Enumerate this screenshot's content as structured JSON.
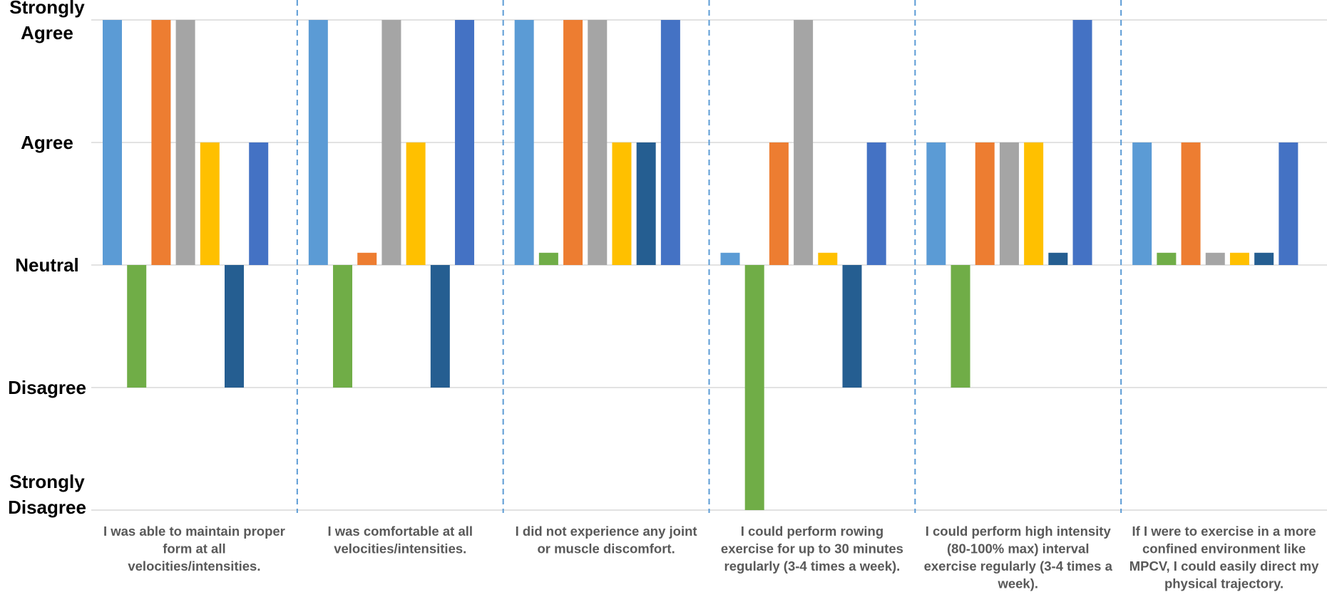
{
  "chart_data": {
    "type": "bar",
    "title": "",
    "xlabel": "",
    "ylabel": "",
    "ylim": [
      -2,
      2
    ],
    "grid": true,
    "legend": "none",
    "y_ticks": [
      {
        "value": 2,
        "lines": [
          "Strongly",
          "Agree"
        ]
      },
      {
        "value": 1,
        "lines": [
          "Agree"
        ]
      },
      {
        "value": 0,
        "lines": [
          "Neutral"
        ]
      },
      {
        "value": -1,
        "lines": [
          "Disagree"
        ]
      },
      {
        "value": -2,
        "lines": [
          "Strongly",
          "Disagree"
        ]
      }
    ],
    "categories": [
      [
        "I was able to maintain proper",
        "form at all",
        "velocities/intensities."
      ],
      [
        "I was comfortable at all",
        "velocities/intensities."
      ],
      [
        "I did not experience any joint",
        "or muscle discomfort."
      ],
      [
        "I could perform rowing",
        "exercise for up to 30 minutes",
        "regularly (3-4 times a week)."
      ],
      [
        "I could perform high intensity",
        "(80-100% max) interval",
        "exercise regularly (3-4 times a",
        "week)."
      ],
      [
        "If I were to exercise in a more",
        "confined environment like",
        "MPCV, I could easily direct my",
        "physical trajectory."
      ]
    ],
    "series": [
      {
        "color": "#5B9BD5",
        "values": [
          2,
          2,
          2,
          0.1,
          1,
          1
        ]
      },
      {
        "color": "#70AD47",
        "values": [
          -1,
          -1,
          0.1,
          -2,
          -1,
          0.1
        ]
      },
      {
        "color": "#ED7D31",
        "values": [
          2,
          0.1,
          2,
          1,
          1,
          1
        ]
      },
      {
        "color": "#A5A5A5",
        "values": [
          2,
          2,
          2,
          2,
          1,
          0.1
        ]
      },
      {
        "color": "#FFC000",
        "values": [
          1,
          1,
          1,
          0.1,
          1,
          0.1
        ]
      },
      {
        "color": "#255E91",
        "values": [
          -1,
          -1,
          1,
          -1,
          0.1,
          0.1
        ]
      },
      {
        "color": "#4472C4",
        "values": [
          1,
          2,
          2,
          1,
          2,
          1
        ]
      }
    ],
    "gridline_color": "#D9D9D9",
    "separator_color": "#5B9BD5"
  }
}
